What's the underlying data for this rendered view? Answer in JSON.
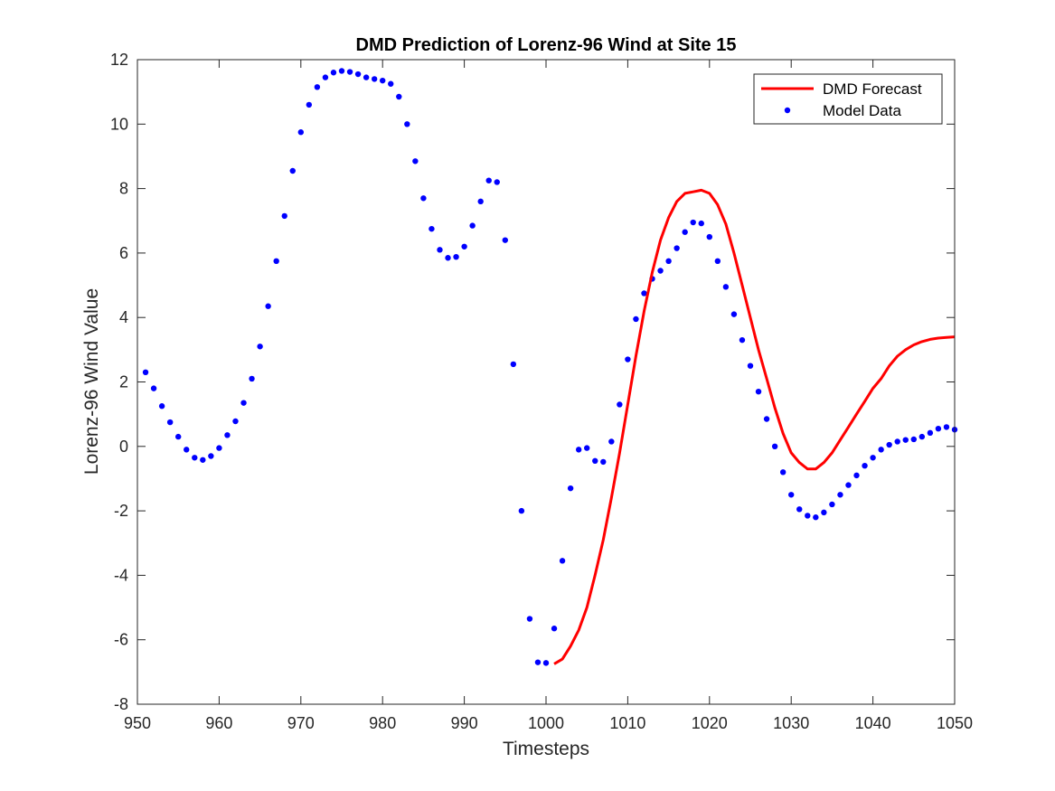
{
  "chart_data": {
    "type": "line",
    "title": "DMD Prediction of Lorenz-96 Wind at Site 15",
    "xlabel": "Timesteps",
    "ylabel": "Lorenz-96 Wind Value",
    "xlim": [
      950,
      1050
    ],
    "ylim": [
      -8,
      12
    ],
    "xticks": [
      950,
      960,
      970,
      980,
      990,
      1000,
      1010,
      1020,
      1030,
      1040,
      1050
    ],
    "yticks": [
      -8,
      -6,
      -4,
      -2,
      0,
      2,
      4,
      6,
      8,
      10,
      12
    ],
    "grid": false,
    "legend_position": "top-right",
    "colors": {
      "forecast": "#ff0000",
      "model": "#0000ff"
    },
    "series": [
      {
        "name": "DMD Forecast",
        "style": "line",
        "x": [
          1001,
          1002,
          1003,
          1004,
          1005,
          1006,
          1007,
          1008,
          1009,
          1010,
          1011,
          1012,
          1013,
          1014,
          1015,
          1016,
          1017,
          1018,
          1019,
          1020,
          1021,
          1022,
          1023,
          1024,
          1025,
          1026,
          1027,
          1028,
          1029,
          1030,
          1031,
          1032,
          1033,
          1034,
          1035,
          1036,
          1037,
          1038,
          1039,
          1040,
          1041,
          1042,
          1043,
          1044,
          1045,
          1046,
          1047,
          1048,
          1049,
          1050
        ],
        "y": [
          -6.75,
          -6.6,
          -6.2,
          -5.7,
          -5.0,
          -4.0,
          -2.9,
          -1.6,
          -0.2,
          1.3,
          2.8,
          4.2,
          5.4,
          6.4,
          7.1,
          7.6,
          7.85,
          7.9,
          7.95,
          7.85,
          7.5,
          6.9,
          6.0,
          5.0,
          4.0,
          3.0,
          2.1,
          1.2,
          0.4,
          -0.2,
          -0.5,
          -0.7,
          -0.7,
          -0.5,
          -0.2,
          0.2,
          0.6,
          1.0,
          1.4,
          1.8,
          2.1,
          2.5,
          2.8,
          3.0,
          3.15,
          3.25,
          3.32,
          3.36,
          3.38,
          3.4
        ]
      },
      {
        "name": "Model Data",
        "style": "markers",
        "x": [
          951,
          952,
          953,
          954,
          955,
          956,
          957,
          958,
          959,
          960,
          961,
          962,
          963,
          964,
          965,
          966,
          967,
          968,
          969,
          970,
          971,
          972,
          973,
          974,
          975,
          976,
          977,
          978,
          979,
          980,
          981,
          982,
          983,
          984,
          985,
          986,
          987,
          988,
          989,
          990,
          991,
          992,
          993,
          994,
          995,
          996,
          997,
          998,
          999,
          1000,
          1001,
          1002,
          1003,
          1004,
          1005,
          1006,
          1007,
          1008,
          1009,
          1010,
          1011,
          1012,
          1013,
          1014,
          1015,
          1016,
          1017,
          1018,
          1019,
          1020,
          1021,
          1022,
          1023,
          1024,
          1025,
          1026,
          1027,
          1028,
          1029,
          1030,
          1031,
          1032,
          1033,
          1034,
          1035,
          1036,
          1037,
          1038,
          1039,
          1040,
          1041,
          1042,
          1043,
          1044,
          1045,
          1046,
          1047,
          1048,
          1049,
          1050
        ],
        "y": [
          2.3,
          1.8,
          1.25,
          0.75,
          0.3,
          -0.1,
          -0.35,
          -0.42,
          -0.3,
          -0.05,
          0.35,
          0.78,
          1.35,
          2.1,
          3.1,
          4.35,
          5.75,
          7.15,
          8.55,
          9.75,
          10.6,
          11.15,
          11.45,
          11.6,
          11.65,
          11.62,
          11.55,
          11.45,
          11.4,
          11.35,
          11.25,
          10.85,
          10.0,
          8.85,
          7.7,
          6.75,
          6.1,
          5.85,
          5.88,
          6.2,
          6.85,
          7.6,
          8.25,
          8.2,
          6.4,
          2.55,
          -2.0,
          -5.35,
          -6.7,
          -6.72,
          -5.65,
          -3.55,
          -1.3,
          -0.1,
          -0.05,
          -0.45,
          -0.48,
          0.15,
          1.3,
          2.7,
          3.95,
          4.75,
          5.2,
          5.45,
          5.75,
          6.15,
          6.65,
          6.95,
          6.92,
          6.5,
          5.75,
          4.95,
          4.1,
          3.3,
          2.5,
          1.7,
          0.85,
          0.0,
          -0.8,
          -1.5,
          -1.95,
          -2.15,
          -2.2,
          -2.05,
          -1.8,
          -1.5,
          -1.2,
          -0.9,
          -0.6,
          -0.35,
          -0.1,
          0.05,
          0.15,
          0.2,
          0.22,
          0.3,
          0.42,
          0.55,
          0.6,
          0.52
        ]
      }
    ]
  }
}
